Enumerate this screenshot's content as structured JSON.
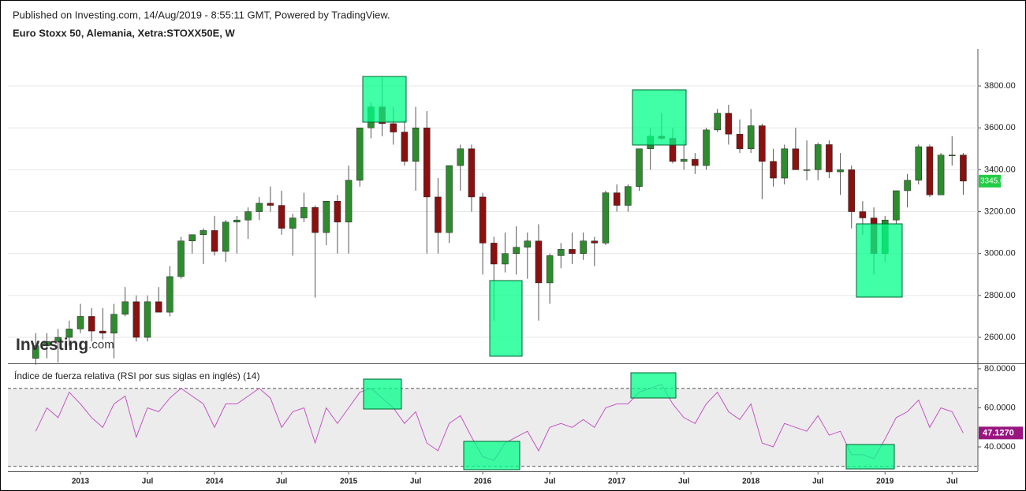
{
  "header": "Published on Investing.com, 14/Aug/2019 - 8:55:11 GMT, Powered by TradingView.",
  "logo": {
    "brand": "Investing",
    "suffix": ".com"
  },
  "chart_data": [
    {
      "type": "candlestick",
      "title": "Euro Stoxx 50, Alemania, Xetra:STOXX50E, W",
      "x": [
        "2012-09",
        "2012-10",
        "2012-11",
        "2012-12",
        "2013-01",
        "2013-02",
        "2013-03",
        "2013-04",
        "2013-05",
        "2013-06",
        "2013-07",
        "2013-08",
        "2013-09",
        "2013-10",
        "2013-11",
        "2013-12",
        "2014-01",
        "2014-02",
        "2014-03",
        "2014-04",
        "2014-05",
        "2014-06",
        "2014-07",
        "2014-08",
        "2014-09",
        "2014-10",
        "2014-11",
        "2014-12",
        "2015-01",
        "2015-02",
        "2015-03",
        "2015-04",
        "2015-05",
        "2015-06",
        "2015-07",
        "2015-08",
        "2015-09",
        "2015-10",
        "2015-11",
        "2015-12",
        "2016-01",
        "2016-02",
        "2016-03",
        "2016-04",
        "2016-05",
        "2016-06",
        "2016-07",
        "2016-08",
        "2016-09",
        "2016-10",
        "2016-11",
        "2016-12",
        "2017-01",
        "2017-02",
        "2017-03",
        "2017-04",
        "2017-05",
        "2017-06",
        "2017-07",
        "2017-08",
        "2017-09",
        "2017-10",
        "2017-11",
        "2017-12",
        "2018-01",
        "2018-02",
        "2018-03",
        "2018-04",
        "2018-05",
        "2018-06",
        "2018-07",
        "2018-08",
        "2018-09",
        "2018-10",
        "2018-11",
        "2018-12",
        "2019-01",
        "2019-02",
        "2019-03",
        "2019-04",
        "2019-05",
        "2019-06",
        "2019-07",
        "2019-08"
      ],
      "open": [
        2500,
        2560,
        2580,
        2600,
        2640,
        2700,
        2630,
        2620,
        2710,
        2770,
        2600,
        2770,
        2720,
        2890,
        3060,
        3090,
        3110,
        3010,
        3150,
        3160,
        3200,
        3240,
        3230,
        3120,
        3170,
        3220,
        3100,
        3250,
        3150,
        3350,
        3600,
        3700,
        3620,
        3580,
        3440,
        3600,
        3270,
        3100,
        3420,
        3500,
        3270,
        3050,
        2950,
        3000,
        3030,
        3060,
        2860,
        2990,
        3020,
        3000,
        3060,
        3050,
        3290,
        3230,
        3320,
        3500,
        3560,
        3550,
        3440,
        3450,
        3420,
        3590,
        3670,
        3570,
        3500,
        3610,
        3440,
        3360,
        3500,
        3400,
        3400,
        3520,
        3390,
        3400,
        3200,
        3170,
        3000,
        3160,
        3300,
        3350,
        3510,
        3280,
        3470,
        3470
      ],
      "high": [
        2620,
        2620,
        2640,
        2680,
        2760,
        2740,
        2740,
        2760,
        2840,
        2800,
        2800,
        2840,
        2940,
        3080,
        3090,
        3120,
        3180,
        3160,
        3180,
        3220,
        3270,
        3320,
        3300,
        3190,
        3290,
        3230,
        3250,
        3280,
        3420,
        3600,
        3720,
        3840,
        3700,
        3640,
        3700,
        3680,
        3360,
        3420,
        3520,
        3520,
        3290,
        3080,
        3100,
        3130,
        3100,
        3140,
        3000,
        3050,
        3100,
        3100,
        3080,
        3300,
        3330,
        3330,
        3500,
        3600,
        3670,
        3600,
        3540,
        3480,
        3600,
        3690,
        3710,
        3640,
        3690,
        3620,
        3500,
        3520,
        3600,
        3540,
        3530,
        3540,
        3480,
        3420,
        3250,
        3220,
        3180,
        3300,
        3380,
        3520,
        3520,
        3480,
        3560,
        3480
      ],
      "low": [
        2470,
        2500,
        2480,
        2560,
        2620,
        2580,
        2590,
        2500,
        2700,
        2580,
        2580,
        2730,
        2700,
        2880,
        3000,
        2950,
        2990,
        2960,
        3000,
        3070,
        3160,
        3200,
        3090,
        2990,
        3150,
        2790,
        3040,
        3000,
        3000,
        3320,
        3550,
        3560,
        3520,
        3420,
        3300,
        3000,
        3000,
        3050,
        3300,
        3200,
        2900,
        2680,
        2910,
        2900,
        2880,
        2680,
        2760,
        2930,
        2950,
        2970,
        2940,
        3040,
        3200,
        3200,
        3300,
        3400,
        3540,
        3430,
        3400,
        3380,
        3400,
        3580,
        3520,
        3480,
        3480,
        3260,
        3320,
        3330,
        3400,
        3350,
        3350,
        3360,
        3280,
        3120,
        3090,
        2900,
        2960,
        3140,
        3220,
        3330,
        3270,
        3280,
        3420,
        3280
      ],
      "close": [
        2560,
        2580,
        2600,
        2640,
        2700,
        2630,
        2620,
        2710,
        2770,
        2600,
        2770,
        2720,
        2890,
        3060,
        3090,
        3110,
        3010,
        3150,
        3160,
        3200,
        3240,
        3230,
        3120,
        3170,
        3220,
        3100,
        3250,
        3150,
        3350,
        3600,
        3700,
        3620,
        3580,
        3440,
        3600,
        3270,
        3100,
        3420,
        3500,
        3270,
        3050,
        2950,
        3000,
        3030,
        3060,
        2860,
        2990,
        3020,
        3000,
        3060,
        3050,
        3290,
        3230,
        3320,
        3500,
        3560,
        3550,
        3440,
        3450,
        3420,
        3590,
        3670,
        3570,
        3500,
        3610,
        3440,
        3360,
        3500,
        3400,
        3400,
        3520,
        3390,
        3400,
        3200,
        3170,
        3000,
        3160,
        3300,
        3350,
        3510,
        3280,
        3470,
        3470,
        3345.66
      ],
      "up_color": "#2e8b2e",
      "down_color": "#8b1010",
      "ylim": [
        2476,
        3977
      ],
      "yticks": [
        {
          "value": 2600,
          "label": "2600.00"
        },
        {
          "value": 2800,
          "label": "2800.00"
        },
        {
          "value": 3000,
          "label": "3000.00"
        },
        {
          "value": 3200,
          "label": "3200.00"
        },
        {
          "value": 3400,
          "label": "3400.00"
        },
        {
          "value": 3600,
          "label": "3600.00"
        },
        {
          "value": 3800,
          "label": "3800.00"
        }
      ],
      "grid": true
    },
    {
      "type": "line",
      "title": "Índice de fuerza relativa (RSI por sus siglas en inglés) (14)",
      "x": [
        "2012-09",
        "2012-10",
        "2012-11",
        "2012-12",
        "2013-01",
        "2013-02",
        "2013-03",
        "2013-04",
        "2013-05",
        "2013-06",
        "2013-07",
        "2013-08",
        "2013-09",
        "2013-10",
        "2013-11",
        "2013-12",
        "2014-01",
        "2014-02",
        "2014-03",
        "2014-04",
        "2014-05",
        "2014-06",
        "2014-07",
        "2014-08",
        "2014-09",
        "2014-10",
        "2014-11",
        "2014-12",
        "2015-01",
        "2015-02",
        "2015-03",
        "2015-04",
        "2015-05",
        "2015-06",
        "2015-07",
        "2015-08",
        "2015-09",
        "2015-10",
        "2015-11",
        "2015-12",
        "2016-01",
        "2016-02",
        "2016-03",
        "2016-04",
        "2016-05",
        "2016-06",
        "2016-07",
        "2016-08",
        "2016-09",
        "2016-10",
        "2016-11",
        "2016-12",
        "2017-01",
        "2017-02",
        "2017-03",
        "2017-04",
        "2017-05",
        "2017-06",
        "2017-07",
        "2017-08",
        "2017-09",
        "2017-10",
        "2017-11",
        "2017-12",
        "2018-01",
        "2018-02",
        "2018-03",
        "2018-04",
        "2018-05",
        "2018-06",
        "2018-07",
        "2018-08",
        "2018-09",
        "2018-10",
        "2018-11",
        "2018-12",
        "2019-01",
        "2019-02",
        "2019-03",
        "2019-04",
        "2019-05",
        "2019-06",
        "2019-07",
        "2019-08"
      ],
      "values": [
        48,
        60,
        55,
        68,
        62,
        55,
        50,
        62,
        66,
        45,
        60,
        58,
        65,
        70,
        66,
        62,
        50,
        62,
        62,
        66,
        70,
        65,
        50,
        58,
        60,
        42,
        60,
        52,
        60,
        68,
        70,
        65,
        60,
        52,
        58,
        42,
        38,
        52,
        56,
        45,
        35,
        33,
        42,
        45,
        48,
        38,
        50,
        52,
        50,
        54,
        50,
        60,
        62,
        62,
        68,
        70,
        72,
        62,
        55,
        52,
        62,
        68,
        58,
        54,
        62,
        42,
        40,
        52,
        50,
        48,
        56,
        46,
        48,
        36,
        36,
        34,
        44,
        55,
        58,
        64,
        50,
        60,
        58,
        47.127
      ],
      "last_label": "47.1270",
      "color": "#c455c4",
      "ylim": [
        27.5,
        82.4
      ],
      "yticks": [
        {
          "value": 40,
          "label": "40.0000"
        },
        {
          "value": 60,
          "label": "60.0000"
        },
        {
          "value": 80,
          "label": "80.0000"
        }
      ],
      "reference_lines": [
        30,
        70
      ],
      "xticks": [
        {
          "value": "2013-01",
          "label": "2013"
        },
        {
          "value": "2013-07",
          "label": "Jul"
        },
        {
          "value": "2014-01",
          "label": "2014"
        },
        {
          "value": "2014-07",
          "label": "Jul"
        },
        {
          "value": "2015-01",
          "label": "2015"
        },
        {
          "value": "2015-07",
          "label": "Jul"
        },
        {
          "value": "2016-01",
          "label": "2016"
        },
        {
          "value": "2016-07",
          "label": "Jul"
        },
        {
          "value": "2017-01",
          "label": "2017"
        },
        {
          "value": "2017-07",
          "label": "Jul"
        },
        {
          "value": "2018-01",
          "label": "2018"
        },
        {
          "value": "2018-07",
          "label": "Jul"
        },
        {
          "value": "2019-01",
          "label": "2019"
        },
        {
          "value": "2019-07",
          "label": "Jul"
        }
      ]
    }
  ]
}
